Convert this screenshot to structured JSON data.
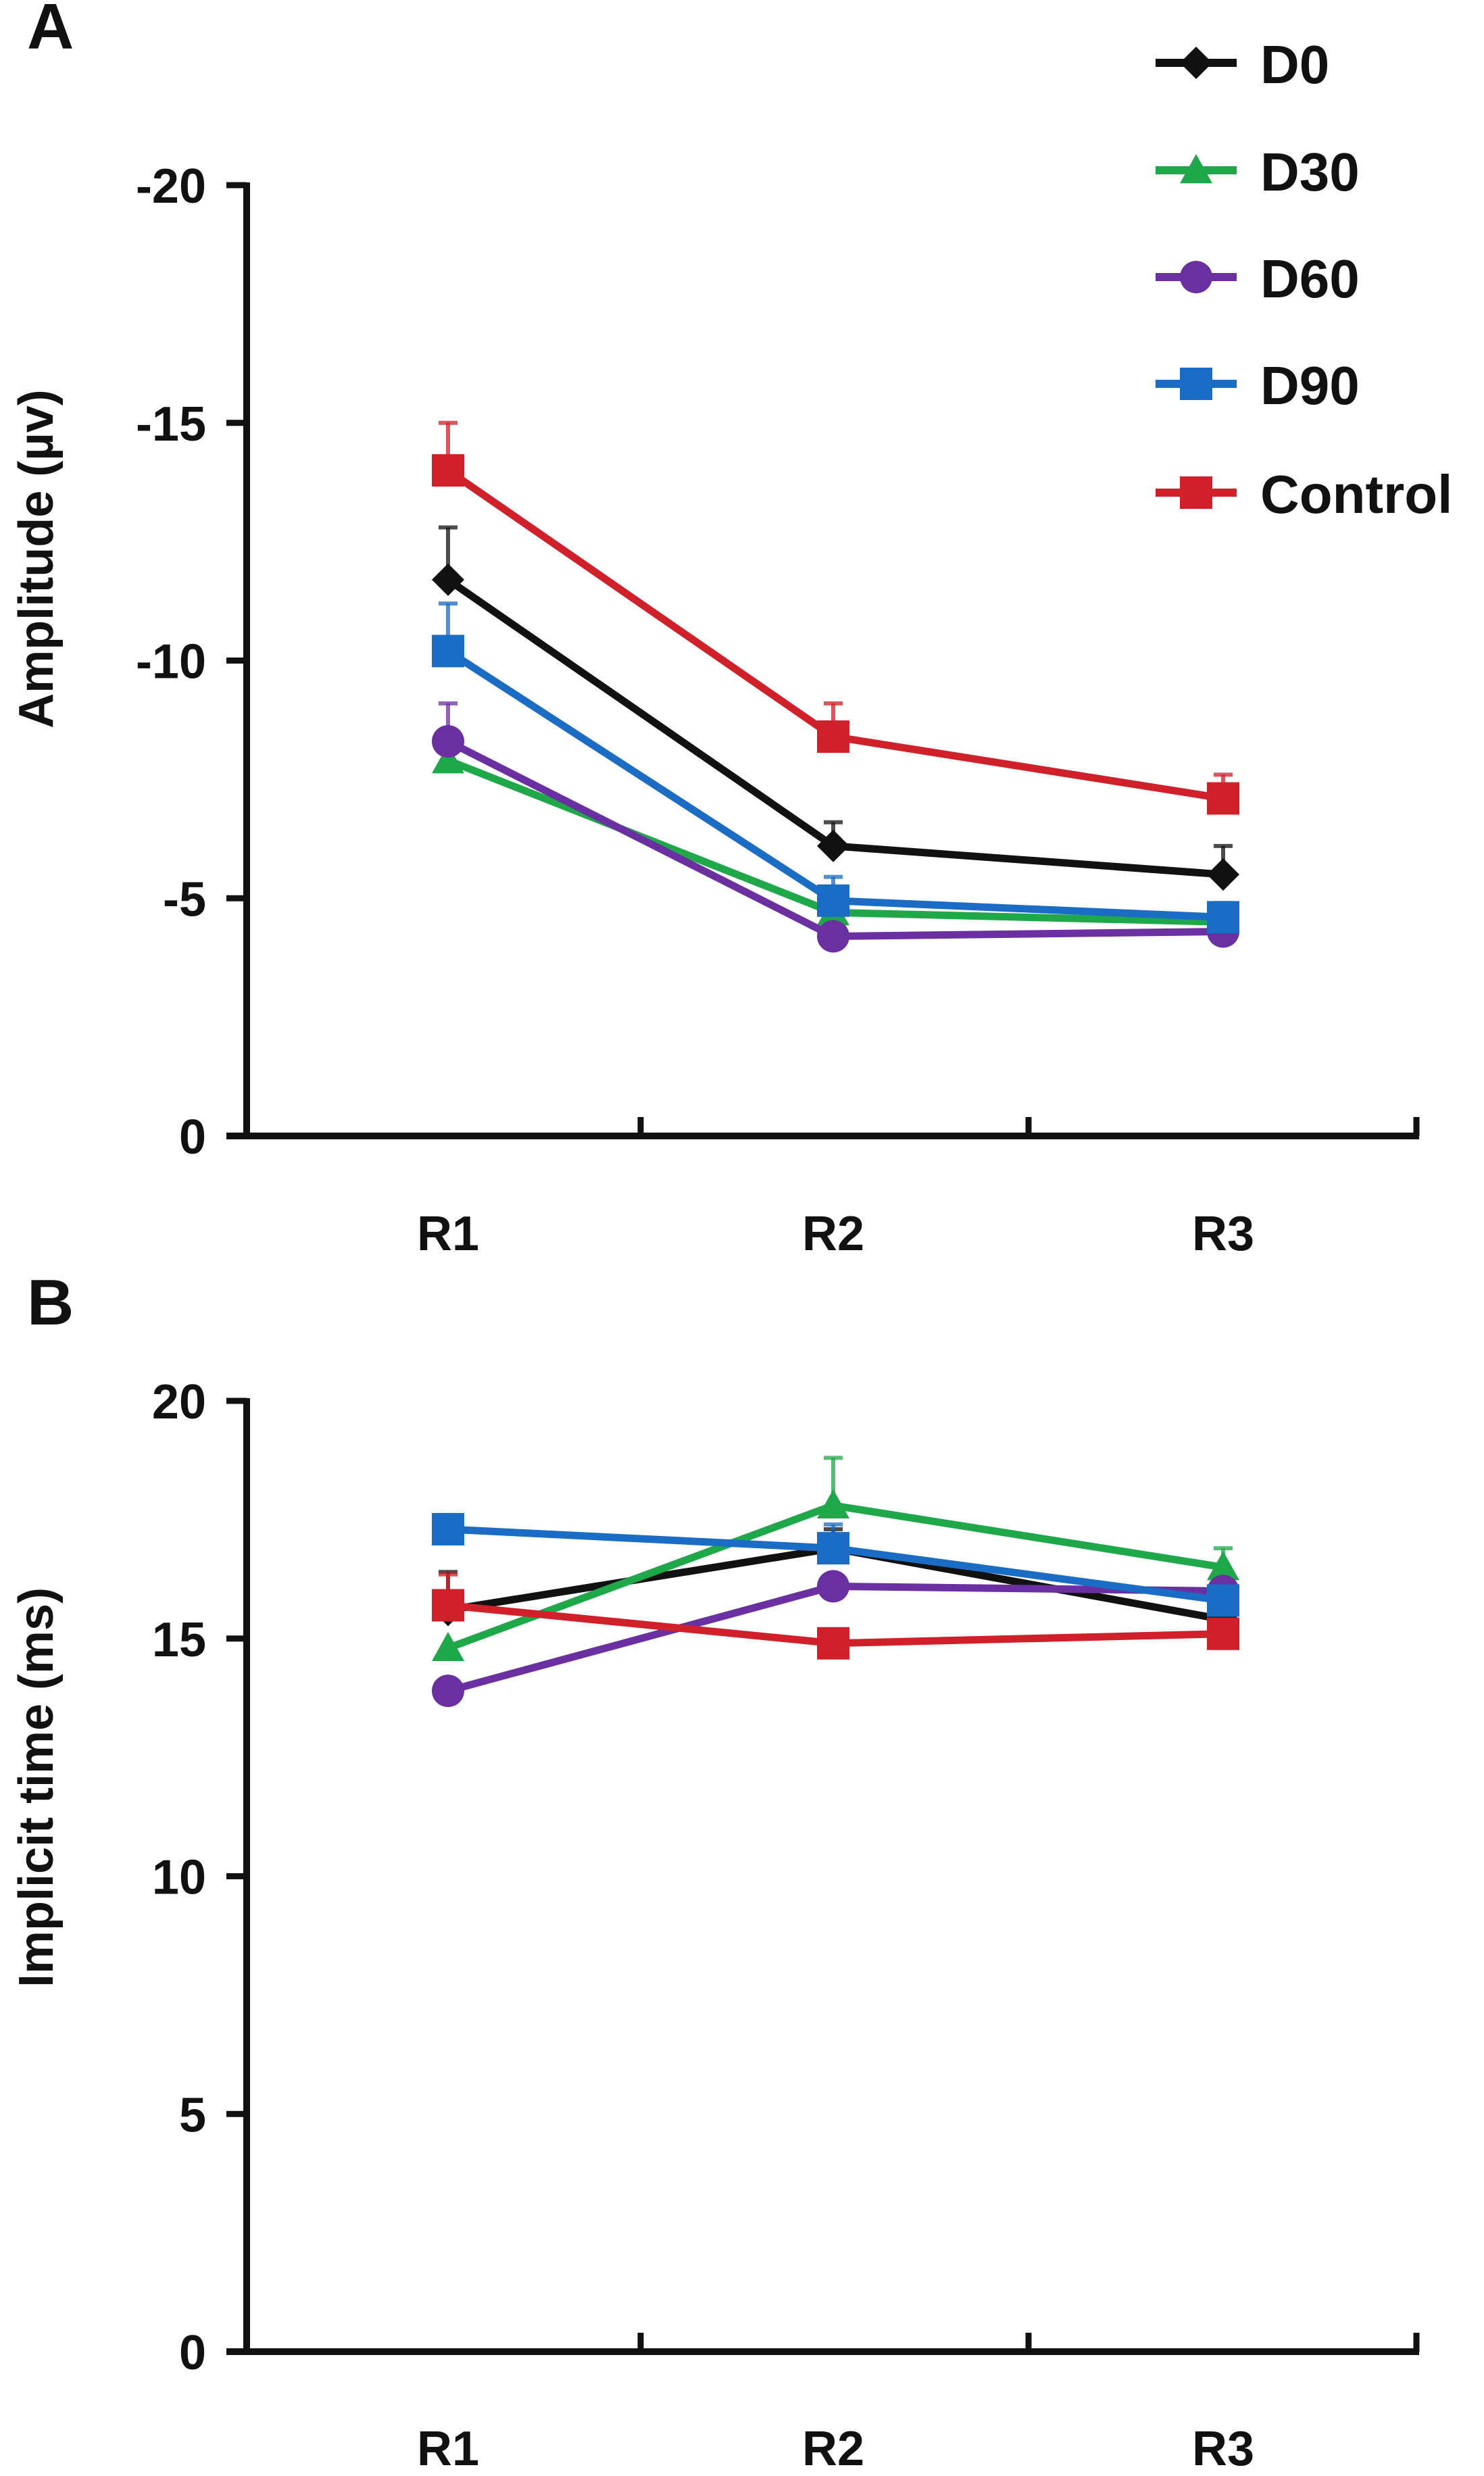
{
  "chart_data": [
    {
      "panel": "A",
      "type": "line",
      "title": "",
      "xlabel": "",
      "ylabel": "Amplitude (µv)",
      "categories": [
        "R1",
        "R2",
        "R3"
      ],
      "y_ticks": [
        -20,
        -15,
        -10,
        -5,
        0
      ],
      "y_tick_labels": [
        "-20",
        "-15",
        "-10",
        "-5",
        "0"
      ],
      "ylim": [
        0,
        -20
      ],
      "y_inverted": true,
      "grid": false,
      "legend_position": "top-right",
      "series": [
        {
          "name": "D0",
          "color": "#111111",
          "marker": "diamond",
          "values": [
            -11.7,
            -6.1,
            -5.5
          ],
          "error_upper": [
            -12.8,
            -6.6,
            -6.1
          ]
        },
        {
          "name": "D30",
          "color": "#1ea84a",
          "marker": "triangle",
          "values": [
            -7.9,
            -4.7,
            -4.5
          ],
          "error_upper": [
            -7.9,
            -4.7,
            -4.5
          ]
        },
        {
          "name": "D60",
          "color": "#6a2fa0",
          "marker": "circle",
          "values": [
            -8.3,
            -4.2,
            -4.3
          ],
          "error_upper": [
            -9.1,
            -4.2,
            -4.3
          ]
        },
        {
          "name": "D90",
          "color": "#1a6cc4",
          "marker": "square",
          "values": [
            -10.2,
            -4.95,
            -4.6
          ],
          "error_upper": [
            -11.2,
            -5.45,
            -4.9
          ]
        },
        {
          "name": "Control",
          "color": "#d0202a",
          "marker": "square",
          "values": [
            -14.0,
            -8.4,
            -7.1
          ],
          "error_upper": [
            -15.0,
            -9.1,
            -7.6
          ]
        }
      ]
    },
    {
      "panel": "B",
      "type": "line",
      "title": "",
      "xlabel": "",
      "ylabel": "Implicit time (ms)",
      "categories": [
        "R1",
        "R2",
        "R3"
      ],
      "y_ticks": [
        0,
        5,
        10,
        15,
        20
      ],
      "y_tick_labels": [
        "0",
        "5",
        "10",
        "15",
        "20"
      ],
      "ylim": [
        0,
        20
      ],
      "y_inverted": false,
      "grid": false,
      "legend_position": "none",
      "series": [
        {
          "name": "D0",
          "color": "#111111",
          "marker": "diamond",
          "values": [
            15.6,
            16.9,
            15.4
          ],
          "error_upper": [
            16.4,
            17.3,
            15.4
          ]
        },
        {
          "name": "D30",
          "color": "#1ea84a",
          "marker": "triangle",
          "values": [
            14.8,
            17.8,
            16.5
          ],
          "error_upper": [
            14.8,
            18.8,
            16.9
          ]
        },
        {
          "name": "D60",
          "color": "#6a2fa0",
          "marker": "circle",
          "values": [
            13.9,
            16.1,
            16.0
          ],
          "error_upper": [
            13.9,
            16.1,
            16.0
          ]
        },
        {
          "name": "D90",
          "color": "#1a6cc4",
          "marker": "square",
          "values": [
            17.3,
            16.9,
            15.8
          ],
          "error_upper": [
            17.6,
            17.4,
            15.8
          ]
        },
        {
          "name": "Control",
          "color": "#d0202a",
          "marker": "square",
          "values": [
            15.7,
            14.9,
            15.1
          ],
          "error_upper": [
            16.35,
            14.9,
            15.1
          ]
        }
      ]
    }
  ],
  "labels": {
    "panel_a": "A",
    "panel_b": "B"
  },
  "legend": {
    "items": [
      {
        "name": "D0",
        "color": "#111111",
        "marker": "diamond"
      },
      {
        "name": "D30",
        "color": "#1ea84a",
        "marker": "triangle"
      },
      {
        "name": "D60",
        "color": "#6a2fa0",
        "marker": "circle"
      },
      {
        "name": "D90",
        "color": "#1a6cc4",
        "marker": "square"
      },
      {
        "name": "Control",
        "color": "#d0202a",
        "marker": "square"
      }
    ]
  }
}
